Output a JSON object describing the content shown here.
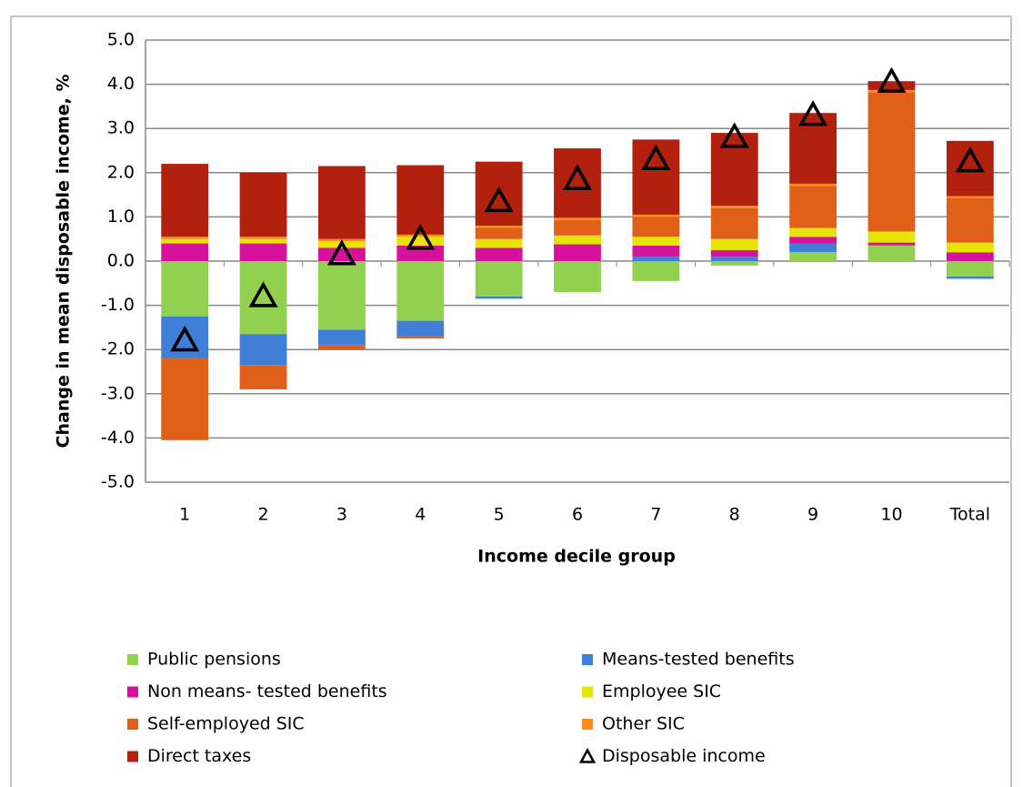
{
  "chart_data": {
    "type": "bar",
    "stacked": true,
    "x_label": "Income decile group",
    "y_label": "Change in mean disposable income, %",
    "categories": [
      "1",
      "2",
      "3",
      "4",
      "5",
      "6",
      "7",
      "8",
      "9",
      "10",
      "Total"
    ],
    "ylim": [
      -5,
      5
    ],
    "yticks": [
      {
        "value": -5,
        "label": "-5.0"
      },
      {
        "value": -4,
        "label": "-4.0"
      },
      {
        "value": -3,
        "label": "-3.0"
      },
      {
        "value": -2,
        "label": "-2.0"
      },
      {
        "value": -1,
        "label": "-1.0"
      },
      {
        "value": 0,
        "label": "0.0"
      },
      {
        "value": 1,
        "label": "1.0"
      },
      {
        "value": 2,
        "label": "2.0"
      },
      {
        "value": 3,
        "label": "3.0"
      },
      {
        "value": 4,
        "label": "4.0"
      },
      {
        "value": 5,
        "label": "5.0"
      }
    ],
    "grid": true,
    "legend": "bottom",
    "series": [
      {
        "name": "Public pensions",
        "color": "#92d050",
        "values": [
          -1.25,
          -1.65,
          -1.55,
          -1.35,
          -0.8,
          -0.7,
          -0.45,
          -0.1,
          0.2,
          0.35,
          -0.35
        ]
      },
      {
        "name": "Means-tested benefits",
        "color": "#3f7fd8",
        "values": [
          -0.95,
          -0.7,
          -0.35,
          -0.35,
          -0.05,
          0,
          0.1,
          0.1,
          0.2,
          0.02,
          -0.05
        ]
      },
      {
        "name": "Non means- tested benefits",
        "color": "#d6119b",
        "values": [
          0.4,
          0.4,
          0.3,
          0.35,
          0.3,
          0.38,
          0.25,
          0.15,
          0.15,
          0.05,
          0.2
        ]
      },
      {
        "name": "Employee SIC",
        "color": "#e5e500",
        "values": [
          0.1,
          0.1,
          0.15,
          0.2,
          0.2,
          0.2,
          0.2,
          0.25,
          0.2,
          0.25,
          0.22
        ]
      },
      {
        "name": "Self-employed SIC",
        "color": "#e0601a",
        "values": [
          -1.85,
          -0.55,
          -0.1,
          -0.05,
          0.25,
          0.35,
          0.45,
          0.7,
          0.95,
          3.15,
          1.0
        ]
      },
      {
        "name": "Other SIC",
        "color": "#ff8c1a",
        "values": [
          0.05,
          0.05,
          0.05,
          0.05,
          0.05,
          0.05,
          0.05,
          0.05,
          0.05,
          0.05,
          0.05
        ]
      },
      {
        "name": "Direct taxes",
        "color": "#b2200e",
        "values": [
          1.65,
          1.45,
          1.65,
          1.57,
          1.45,
          1.57,
          1.7,
          1.65,
          1.6,
          0.2,
          1.25
        ]
      },
      {
        "name": "Disposable income",
        "type": "scatter",
        "color": "#000000",
        "values": [
          -1.8,
          -0.8,
          0.15,
          0.5,
          1.35,
          1.85,
          2.3,
          2.8,
          3.3,
          4.05,
          2.25
        ]
      }
    ]
  }
}
